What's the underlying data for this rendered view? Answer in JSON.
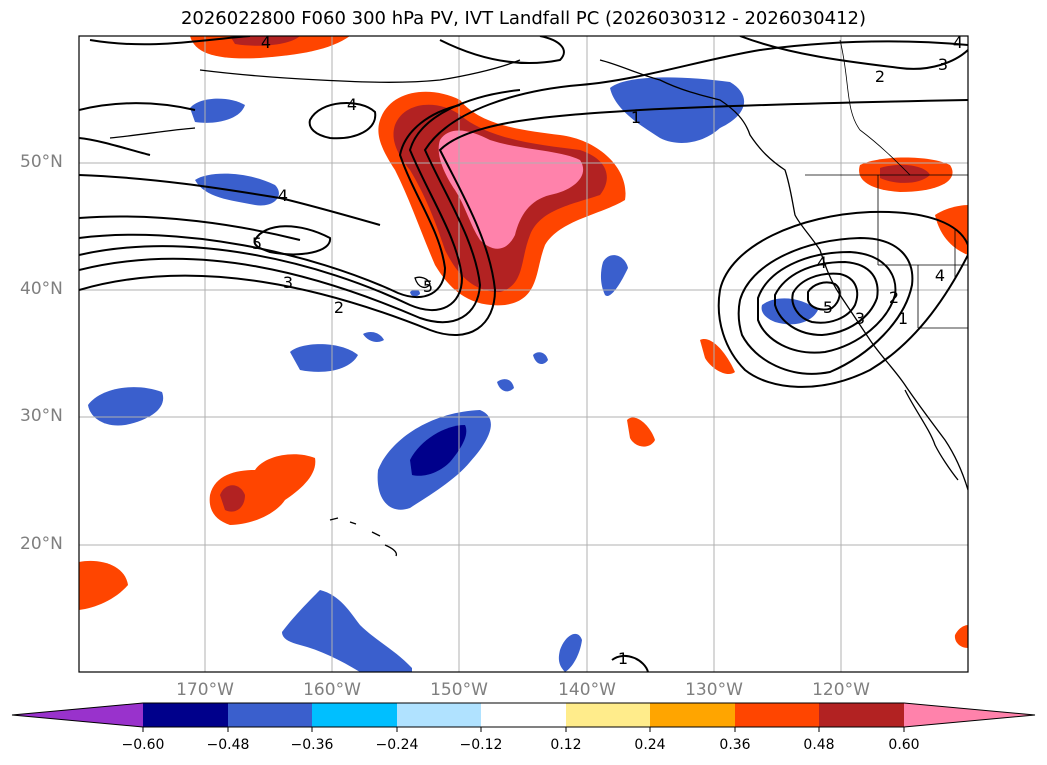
{
  "title": "2026022800 F060 300 hPa PV, IVT Landfall PC (2026030312 - 2026030412)",
  "axes": {
    "lat_labels": [
      "50°N",
      "40°N",
      "30°N",
      "20°N"
    ],
    "lon_labels": [
      "170°W",
      "160°W",
      "150°W",
      "140°W",
      "130°W",
      "120°W"
    ]
  },
  "colorbar": {
    "tick_labels": [
      "−0.60",
      "−0.48",
      "−0.36",
      "−0.24",
      "−0.12",
      "0.12",
      "0.24",
      "0.36",
      "0.48",
      "0.60"
    ],
    "colors": [
      "#9932cc",
      "#00008b",
      "#3a5fcd",
      "#00bfff",
      "#b0e2ff",
      "#ffffff",
      "#ffec8b",
      "#ffa500",
      "#ff4500",
      "#b22222",
      "#ff82ab"
    ]
  },
  "contour_labels": [
    "4",
    "4",
    "4",
    "5",
    "3",
    "2",
    "5",
    "1",
    "2",
    "3",
    "4",
    "4",
    "5",
    "3",
    "2",
    "1",
    "1",
    "4"
  ],
  "colors": {
    "grid": "#b0b0b0",
    "contour": "#000000",
    "coast": "#000000"
  }
}
